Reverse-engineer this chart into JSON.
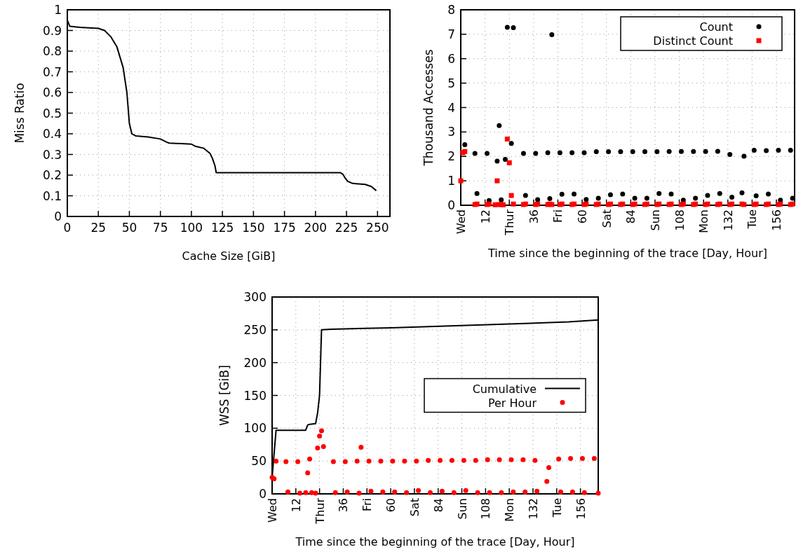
{
  "chart_data": [
    {
      "type": "line",
      "xlabel": "Cache Size [GiB]",
      "ylabel": "Miss Ratio",
      "xlim": [
        0,
        260
      ],
      "ylim": [
        0,
        1
      ],
      "xticks": [
        0,
        25,
        50,
        75,
        100,
        125,
        150,
        175,
        200,
        225,
        250
      ],
      "yticks": [
        0,
        0.1,
        0.2,
        0.3,
        0.4,
        0.5,
        0.6,
        0.7,
        0.8,
        0.9,
        1
      ],
      "grid": true,
      "series": [
        {
          "color": "#000000",
          "x": [
            0,
            2,
            10,
            25,
            30,
            35,
            40,
            45,
            48,
            50,
            52,
            55,
            65,
            75,
            80,
            82,
            100,
            103,
            110,
            115,
            117,
            119,
            120,
            220,
            222,
            224,
            226,
            230,
            240,
            245,
            249
          ],
          "values": [
            0.95,
            0.92,
            0.915,
            0.91,
            0.9,
            0.87,
            0.82,
            0.72,
            0.6,
            0.45,
            0.4,
            0.39,
            0.385,
            0.375,
            0.36,
            0.355,
            0.35,
            0.34,
            0.33,
            0.305,
            0.28,
            0.245,
            0.212,
            0.212,
            0.205,
            0.185,
            0.17,
            0.16,
            0.155,
            0.145,
            0.125
          ]
        }
      ]
    },
    {
      "type": "scatter",
      "xlabel": "Time since the beginning of the trace [Day, Hour]",
      "ylabel": "Thousand Accesses",
      "xlim": [
        0,
        165
      ],
      "ylim": [
        0,
        8
      ],
      "yticks": [
        0,
        1,
        2,
        3,
        4,
        5,
        6,
        7,
        8
      ],
      "xticks": [
        {
          "value": 0,
          "label": "Wed"
        },
        12,
        {
          "value": 24,
          "label": "Thur"
        },
        36,
        {
          "value": 48,
          "label": "Fri"
        },
        60,
        {
          "value": 72,
          "label": "Sat"
        },
        84,
        {
          "value": 96,
          "label": "Sun"
        },
        108,
        {
          "value": 120,
          "label": "Mon"
        },
        132,
        {
          "value": 144,
          "label": "Tue"
        },
        156
      ],
      "grid": true,
      "legend": "top right",
      "series": [
        {
          "name": "Count",
          "color": "#000000",
          "marker": "circle",
          "x": [
            2,
            7,
            8,
            13,
            14,
            18,
            19,
            20,
            22,
            23,
            25,
            26,
            31,
            32,
            37,
            38,
            43,
            44,
            45,
            49,
            50,
            55,
            56,
            61,
            62,
            67,
            68,
            73,
            74,
            79,
            80,
            85,
            86,
            91,
            92,
            97,
            98,
            103,
            104,
            109,
            110,
            115,
            116,
            121,
            122,
            127,
            128,
            133,
            134,
            139,
            140,
            145,
            146,
            151,
            152,
            157,
            158,
            163,
            164
          ],
          "values": [
            2.48,
            2.12,
            0.48,
            2.12,
            0.19,
            1.81,
            3.26,
            0.22,
            1.88,
            7.28,
            2.53,
            7.27,
            2.12,
            0.4,
            2.12,
            0.23,
            2.15,
            0.27,
            6.98,
            2.15,
            0.45,
            2.15,
            0.46,
            2.15,
            0.24,
            2.19,
            0.29,
            2.19,
            0.43,
            2.19,
            0.46,
            2.19,
            0.29,
            2.19,
            0.29,
            2.19,
            0.48,
            2.2,
            0.46,
            2.2,
            0.21,
            2.2,
            0.29,
            2.2,
            0.4,
            2.21,
            0.48,
            2.08,
            0.33,
            0.51,
            2.01,
            2.25,
            0.39,
            2.24,
            0.46,
            2.25,
            0.21,
            2.25,
            0.29
          ]
        },
        {
          "name": "Distinct Count",
          "color": "#ff0000",
          "marker": "square",
          "x": [
            0,
            1,
            2,
            7,
            8,
            13,
            14,
            17,
            18,
            19,
            20,
            21,
            23,
            24,
            25,
            26,
            31,
            32,
            37,
            38,
            43,
            44,
            45,
            49,
            50,
            55,
            56,
            61,
            62,
            67,
            68,
            73,
            74,
            79,
            80,
            85,
            86,
            91,
            92,
            97,
            98,
            103,
            104,
            109,
            110,
            115,
            116,
            121,
            122,
            127,
            128,
            133,
            134,
            139,
            140,
            145,
            146,
            151,
            152,
            157,
            158,
            163,
            164
          ],
          "values": [
            1.0,
            2.15,
            2.2,
            0.03,
            0.05,
            0.03,
            0.05,
            0.02,
            1.0,
            0.03,
            0.03,
            0.02,
            2.71,
            1.74,
            0.4,
            0.05,
            0.03,
            0.05,
            0.03,
            0.05,
            0.03,
            0.05,
            0.03,
            0.03,
            0.05,
            0.03,
            0.05,
            0.03,
            0.05,
            0.03,
            0.05,
            0.03,
            0.05,
            0.03,
            0.05,
            0.03,
            0.05,
            0.03,
            0.05,
            0.03,
            0.05,
            0.03,
            0.05,
            0.03,
            0.05,
            0.03,
            0.05,
            0.03,
            0.05,
            0.03,
            0.05,
            0.03,
            0.05,
            0.05,
            0.03,
            0.03,
            0.05,
            0.03,
            0.05,
            0.03,
            0.05,
            0.03,
            0.05
          ]
        }
      ]
    },
    {
      "type": "line",
      "xlabel": "Time since the beginning of the trace [Day, Hour]",
      "ylabel": "WSS [GiB]",
      "xlim": [
        0,
        165
      ],
      "ylim": [
        0,
        300
      ],
      "yticks": [
        0,
        50,
        100,
        150,
        200,
        250,
        300
      ],
      "xticks": [
        {
          "value": 0,
          "label": "Wed"
        },
        12,
        {
          "value": 24,
          "label": "Thur"
        },
        36,
        {
          "value": 48,
          "label": "Fri"
        },
        60,
        {
          "value": 72,
          "label": "Sat"
        },
        84,
        {
          "value": 96,
          "label": "Sun"
        },
        108,
        {
          "value": 120,
          "label": "Mon"
        },
        132,
        {
          "value": 144,
          "label": "Tue"
        },
        156
      ],
      "grid": true,
      "legend": "right",
      "series": [
        {
          "name": "Cumulative",
          "color": "#000000",
          "x": [
            0,
            2,
            17,
            18,
            19,
            22,
            23,
            24,
            25,
            30,
            60,
            90,
            120,
            150,
            165
          ],
          "values": [
            25,
            97,
            97,
            105,
            106,
            107,
            123,
            150,
            250,
            251,
            253,
            256,
            259,
            262,
            265
          ]
        },
        {
          "name": "Per Hour",
          "type": "scatter",
          "marker": "circle",
          "color": "#ff0000",
          "x": [
            0,
            1,
            2,
            7,
            8,
            13,
            14,
            17,
            18,
            19,
            20,
            22,
            23,
            24,
            25,
            26,
            31,
            32,
            37,
            38,
            43,
            44,
            45,
            49,
            50,
            55,
            56,
            61,
            62,
            67,
            68,
            73,
            74,
            79,
            80,
            85,
            86,
            91,
            92,
            97,
            98,
            103,
            104,
            109,
            110,
            115,
            116,
            121,
            122,
            127,
            128,
            133,
            134,
            139,
            140,
            145,
            146,
            151,
            152,
            157,
            158,
            163,
            165
          ],
          "values": [
            25,
            23,
            50,
            49,
            3,
            49,
            1,
            2,
            32,
            53,
            2,
            1,
            70,
            88,
            96,
            72,
            49,
            2,
            49,
            3,
            50,
            1,
            71,
            50,
            4,
            50,
            3,
            50,
            3,
            50,
            2,
            50,
            5,
            51,
            2,
            51,
            4,
            51,
            2,
            51,
            5,
            51,
            2,
            52,
            2,
            52,
            2,
            52,
            3,
            52,
            3,
            51,
            4,
            19,
            40,
            53,
            3,
            54,
            3,
            54,
            2,
            54,
            1
          ]
        }
      ]
    }
  ]
}
